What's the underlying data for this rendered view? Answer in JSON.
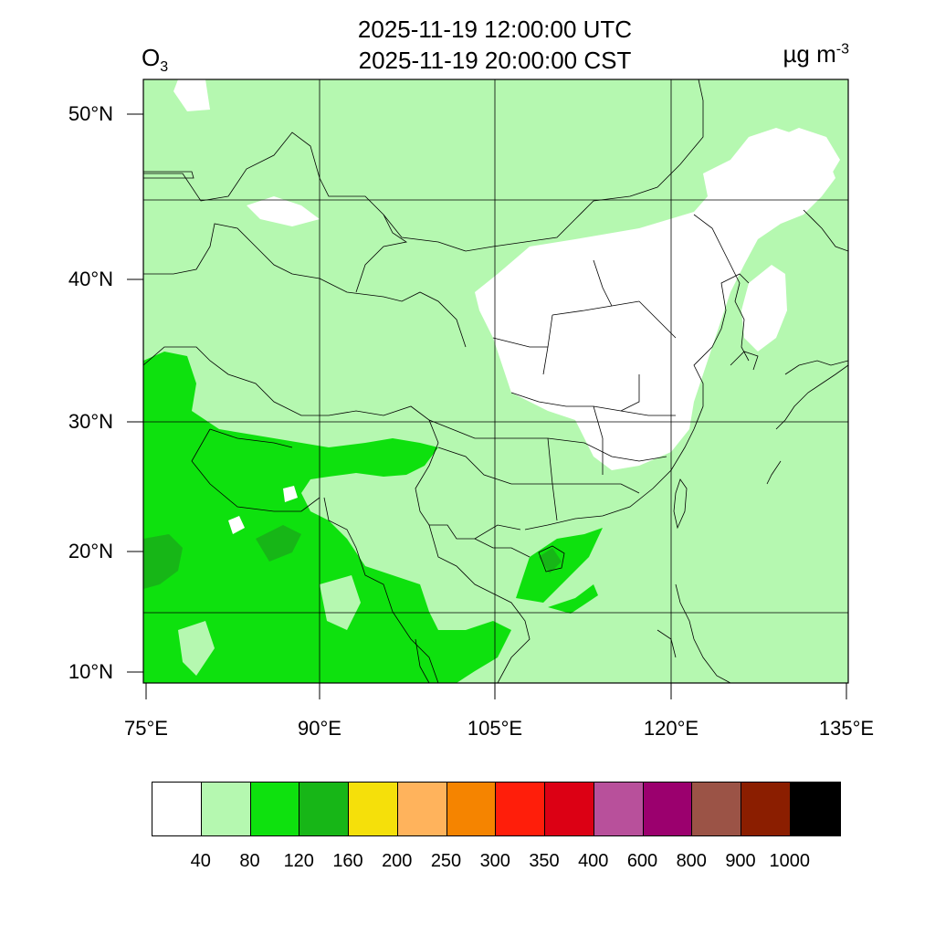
{
  "header": {
    "time_utc": "2025-11-19 12:00:00 UTC",
    "time_local": "2025-11-19 20:00:00 CST",
    "species_base": "O",
    "species_sub": "3",
    "units_base": "µg m",
    "units_sup": "-3"
  },
  "axes": {
    "lat_labels": [
      "50°N",
      "40°N",
      "30°N",
      "20°N",
      "10°N"
    ],
    "lon_labels": [
      "75°E",
      "90°E",
      "105°E",
      "120°E",
      "135°E"
    ]
  },
  "legend": {
    "colors": [
      "#ffffff",
      "#b5f8b0",
      "#0ee10e",
      "#17b617",
      "#f5e00a",
      "#ffb35c",
      "#f58400",
      "#ff1e0a",
      "#dc0014",
      "#b8509b",
      "#9b006e",
      "#9b5346",
      "#8b1e00",
      "#000000"
    ],
    "labels": [
      "40",
      "80",
      "120",
      "160",
      "200",
      "250",
      "300",
      "350",
      "400",
      "600",
      "800",
      "900",
      "1000"
    ]
  },
  "map": {
    "background_class_color": "#b5f8b0",
    "land_border_color": "#000000"
  }
}
